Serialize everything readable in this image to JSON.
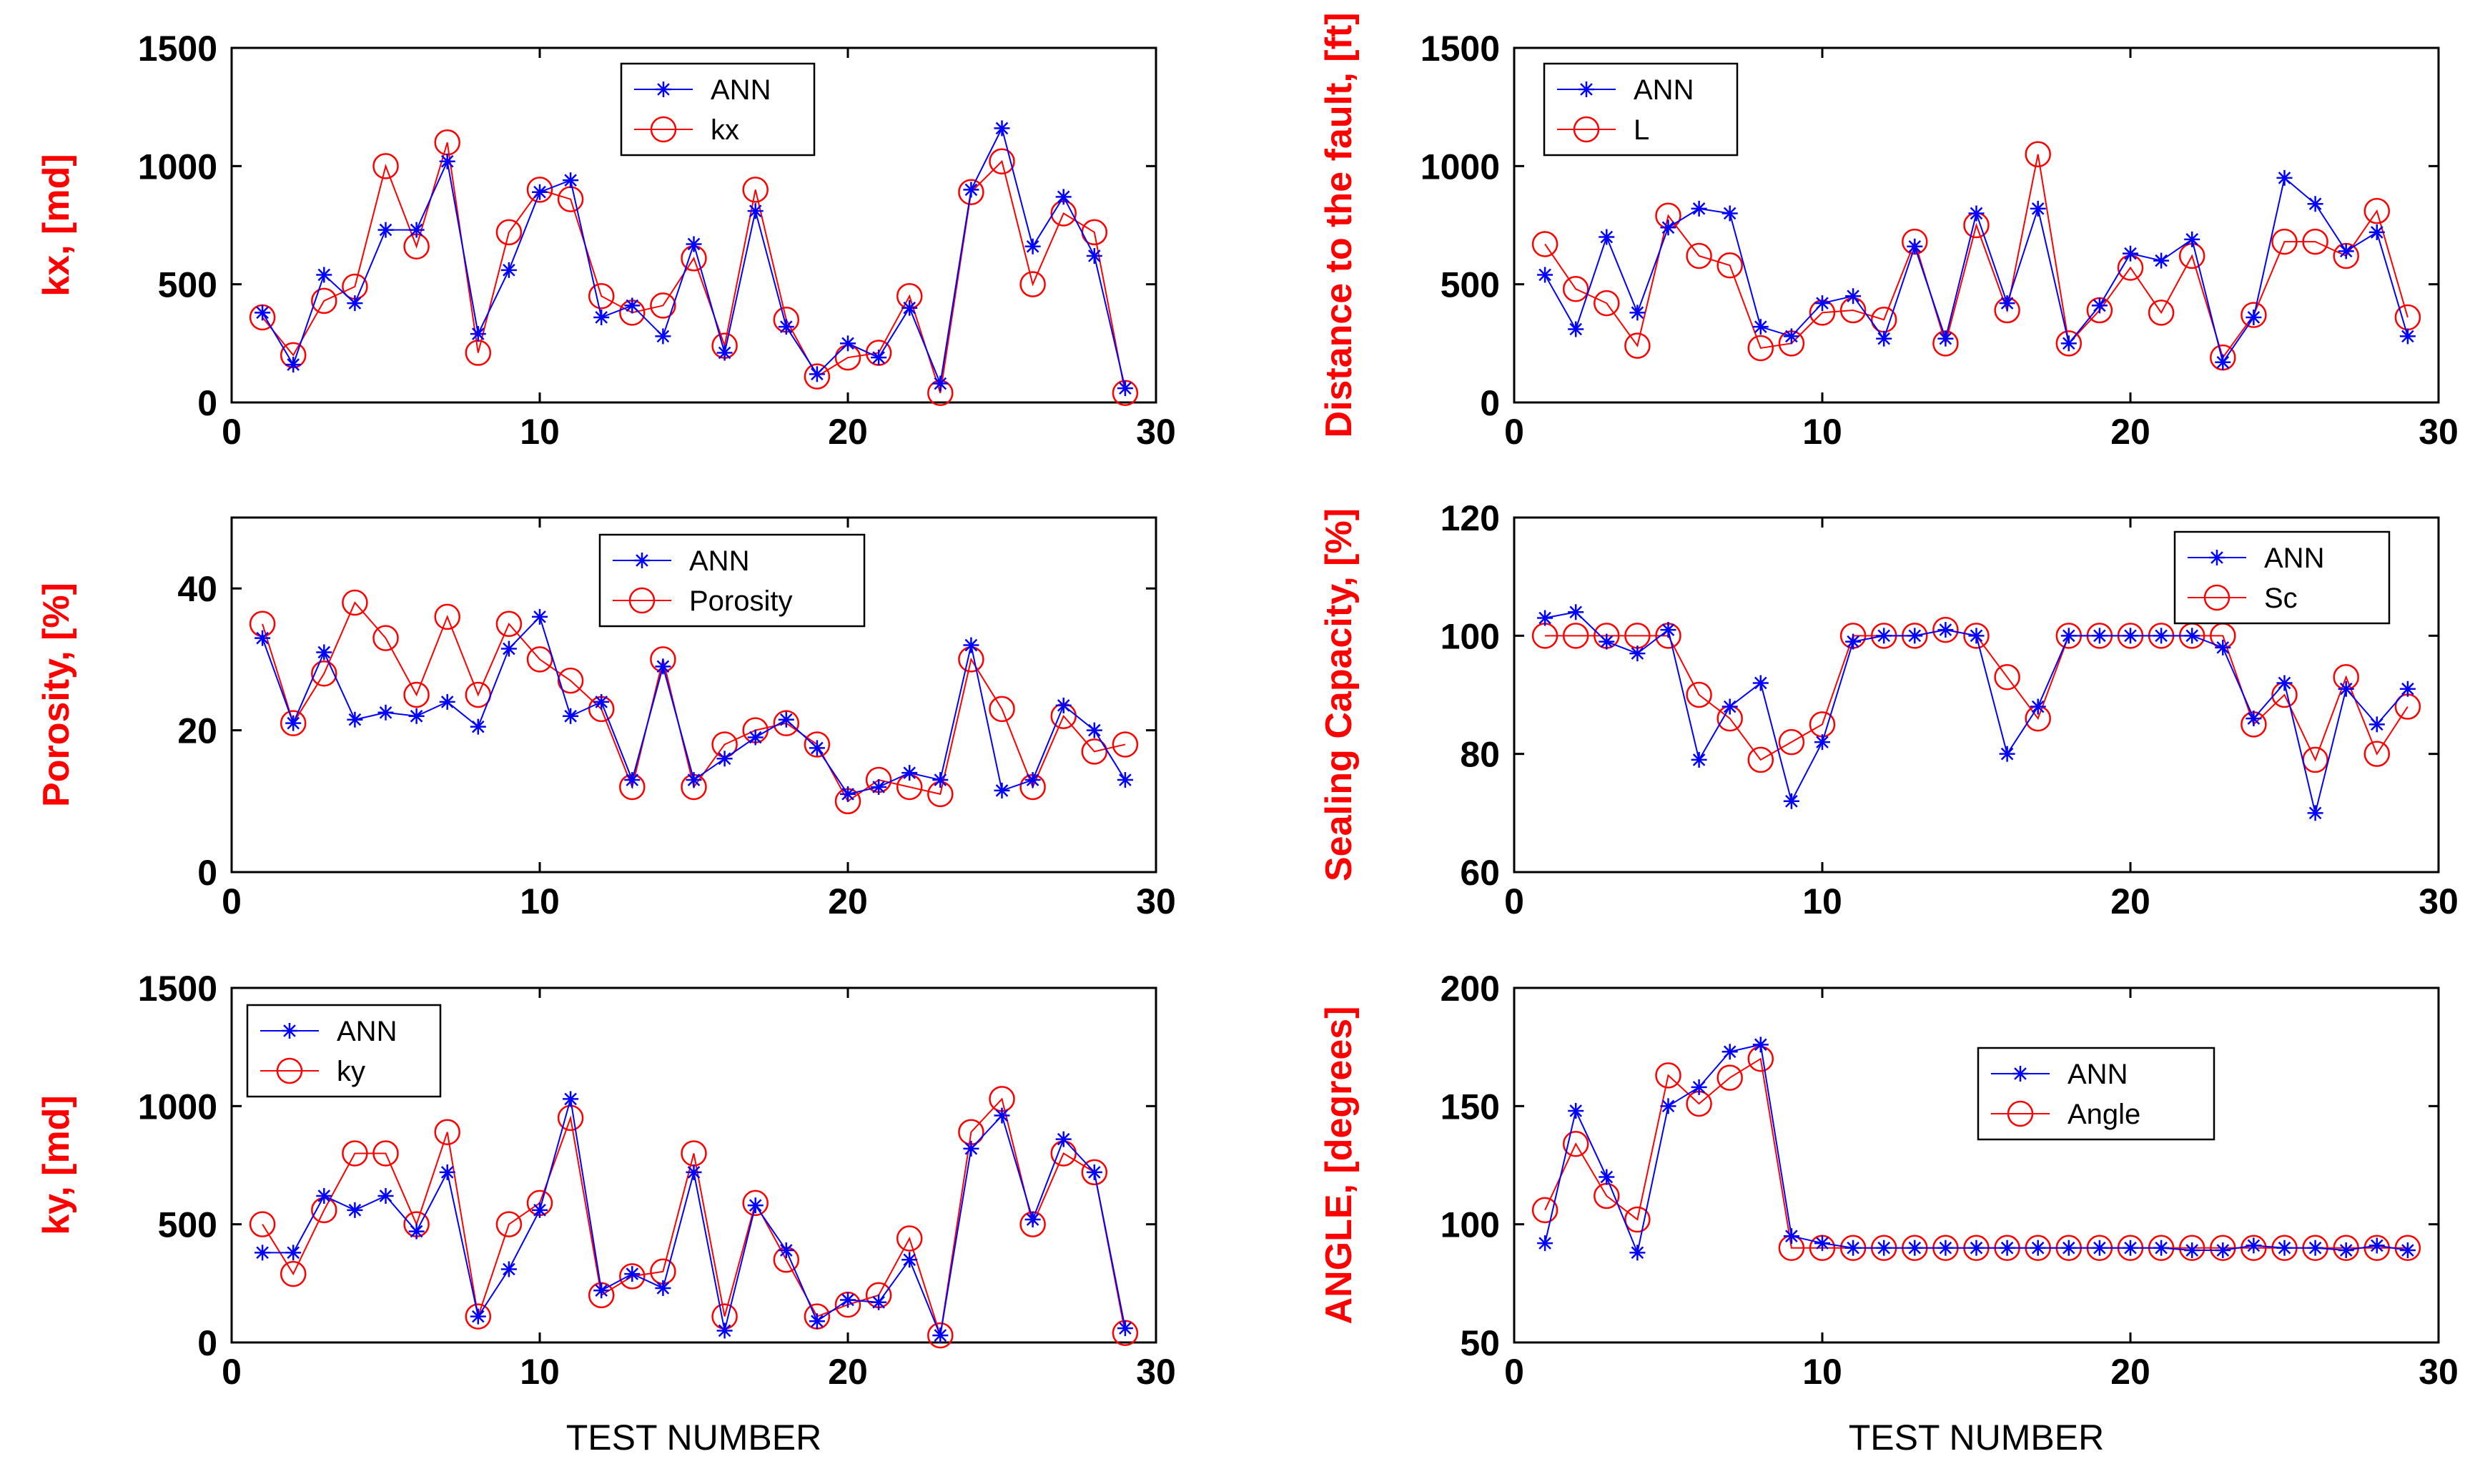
{
  "colors": {
    "ann": "#0000ff",
    "actual": "#ff0000",
    "axis": "#000000",
    "ylabel": "#ff0000"
  },
  "chart_data": [
    {
      "type": "line",
      "panel": "top-left",
      "ylabel": "kx, [md]",
      "xlabel": "",
      "title": "",
      "xlim": [
        0,
        30
      ],
      "ylim": [
        0,
        1500
      ],
      "xticks": [
        0,
        10,
        20,
        30
      ],
      "yticks": [
        0,
        500,
        1000,
        1500
      ],
      "legend_position": "top-center",
      "x": [
        1,
        2,
        3,
        4,
        5,
        6,
        7,
        8,
        9,
        10,
        11,
        12,
        13,
        14,
        15,
        16,
        17,
        18,
        19,
        20,
        21,
        22,
        23,
        24,
        25,
        26,
        27,
        28,
        29
      ],
      "series": [
        {
          "name": "ANN",
          "marker": "asterisk",
          "color": "#0000ff",
          "values": [
            380,
            160,
            540,
            420,
            730,
            730,
            1020,
            290,
            560,
            890,
            940,
            360,
            410,
            280,
            670,
            210,
            810,
            320,
            120,
            250,
            190,
            400,
            80,
            900,
            1160,
            660,
            870,
            620,
            60
          ]
        },
        {
          "name": "kx",
          "marker": "circle",
          "color": "#ff0000",
          "values": [
            360,
            200,
            430,
            490,
            1000,
            660,
            1100,
            210,
            720,
            900,
            860,
            450,
            380,
            410,
            610,
            240,
            900,
            350,
            110,
            190,
            210,
            450,
            40,
            890,
            1020,
            500,
            800,
            720,
            40
          ]
        }
      ]
    },
    {
      "type": "line",
      "panel": "top-right",
      "ylabel": "Distance to the fault, [ft]",
      "xlabel": "",
      "title": "",
      "xlim": [
        0,
        30
      ],
      "ylim": [
        0,
        1500
      ],
      "xticks": [
        0,
        10,
        20,
        30
      ],
      "yticks": [
        0,
        500,
        1000,
        1500
      ],
      "legend_position": "top-left",
      "x": [
        1,
        2,
        3,
        4,
        5,
        6,
        7,
        8,
        9,
        10,
        11,
        12,
        13,
        14,
        15,
        16,
        17,
        18,
        19,
        20,
        21,
        22,
        23,
        24,
        25,
        26,
        27,
        28,
        29
      ],
      "series": [
        {
          "name": "ANN",
          "marker": "asterisk",
          "color": "#0000ff",
          "values": [
            540,
            310,
            700,
            380,
            740,
            820,
            800,
            320,
            280,
            420,
            450,
            270,
            660,
            270,
            800,
            420,
            820,
            250,
            410,
            630,
            600,
            690,
            170,
            360,
            950,
            840,
            640,
            720,
            280
          ]
        },
        {
          "name": "L",
          "marker": "circle",
          "color": "#ff0000",
          "values": [
            670,
            480,
            420,
            240,
            790,
            620,
            580,
            230,
            250,
            380,
            390,
            350,
            680,
            250,
            750,
            390,
            1050,
            250,
            390,
            570,
            380,
            620,
            190,
            370,
            680,
            680,
            620,
            810,
            360
          ]
        }
      ]
    },
    {
      "type": "line",
      "panel": "middle-left",
      "ylabel": "Porosity, [%]",
      "xlabel": "",
      "title": "",
      "xlim": [
        0,
        30
      ],
      "ylim": [
        0,
        50
      ],
      "xticks": [
        0,
        10,
        20,
        30
      ],
      "yticks": [
        0,
        20,
        40
      ],
      "legend_position": "top-center",
      "x": [
        1,
        2,
        3,
        4,
        5,
        6,
        7,
        8,
        9,
        10,
        11,
        12,
        13,
        14,
        15,
        16,
        17,
        18,
        19,
        20,
        21,
        22,
        23,
        24,
        25,
        26,
        27,
        28,
        29
      ],
      "series": [
        {
          "name": "ANN",
          "marker": "asterisk",
          "color": "#0000ff",
          "values": [
            33,
            21,
            31,
            21.5,
            22.5,
            22,
            24,
            20.5,
            31.5,
            36,
            22,
            24,
            13,
            29,
            13,
            16,
            19,
            21.5,
            17.5,
            11,
            12,
            14,
            13,
            32,
            11.5,
            13,
            23.5,
            20,
            13
          ]
        },
        {
          "name": "Porosity",
          "marker": "circle",
          "color": "#ff0000",
          "values": [
            35,
            21,
            28,
            38,
            33,
            25,
            36,
            25,
            35,
            30,
            27,
            23,
            12,
            30,
            12,
            18,
            20,
            21,
            18,
            10,
            13,
            12,
            11,
            30,
            23,
            12,
            22,
            17,
            18
          ]
        }
      ]
    },
    {
      "type": "line",
      "panel": "middle-right",
      "ylabel": "Sealing Capacity, [%]",
      "xlabel": "",
      "title": "",
      "xlim": [
        0,
        30
      ],
      "ylim": [
        60,
        120
      ],
      "xticks": [
        0,
        10,
        20,
        30
      ],
      "yticks": [
        60,
        80,
        100,
        120
      ],
      "legend_position": "top-right",
      "x": [
        1,
        2,
        3,
        4,
        5,
        6,
        7,
        8,
        9,
        10,
        11,
        12,
        13,
        14,
        15,
        16,
        17,
        18,
        19,
        20,
        21,
        22,
        23,
        24,
        25,
        26,
        27,
        28,
        29
      ],
      "series": [
        {
          "name": "ANN",
          "marker": "asterisk",
          "color": "#0000ff",
          "values": [
            103,
            104,
            99,
            97,
            101,
            79,
            88,
            92,
            72,
            82,
            99,
            100,
            100,
            101,
            100,
            80,
            88,
            100,
            100,
            100,
            100,
            100,
            98,
            86,
            92,
            70,
            91,
            85,
            91
          ]
        },
        {
          "name": "Sc",
          "marker": "circle",
          "color": "#ff0000",
          "values": [
            100,
            100,
            100,
            100,
            100,
            90,
            86,
            79,
            82,
            85,
            100,
            100,
            100,
            101,
            100,
            93,
            86,
            100,
            100,
            100,
            100,
            100,
            100,
            85,
            90,
            79,
            93,
            80,
            88
          ]
        }
      ]
    },
    {
      "type": "line",
      "panel": "bottom-left",
      "ylabel": "ky, [md]",
      "xlabel": "TEST NUMBER",
      "title": "",
      "xlim": [
        0,
        30
      ],
      "ylim": [
        0,
        1500
      ],
      "xticks": [
        0,
        10,
        20,
        30
      ],
      "yticks": [
        0,
        500,
        1000,
        1500
      ],
      "legend_position": "top-left",
      "x": [
        1,
        2,
        3,
        4,
        5,
        6,
        7,
        8,
        9,
        10,
        11,
        12,
        13,
        14,
        15,
        16,
        17,
        18,
        19,
        20,
        21,
        22,
        23,
        24,
        25,
        26,
        27,
        28,
        29
      ],
      "series": [
        {
          "name": "ANN",
          "marker": "asterisk",
          "color": "#0000ff",
          "values": [
            380,
            380,
            620,
            560,
            620,
            470,
            720,
            110,
            310,
            560,
            1030,
            220,
            290,
            230,
            720,
            50,
            580,
            390,
            90,
            180,
            170,
            350,
            30,
            820,
            960,
            520,
            860,
            720,
            60
          ]
        },
        {
          "name": "ky",
          "marker": "circle",
          "color": "#ff0000",
          "values": [
            500,
            290,
            560,
            800,
            800,
            500,
            890,
            110,
            500,
            590,
            950,
            200,
            280,
            300,
            800,
            110,
            590,
            350,
            110,
            160,
            200,
            440,
            30,
            890,
            1030,
            500,
            800,
            720,
            40
          ]
        }
      ]
    },
    {
      "type": "line",
      "panel": "bottom-right",
      "ylabel": "ANGLE, [degrees]",
      "xlabel": "TEST NUMBER",
      "title": "",
      "xlim": [
        0,
        30
      ],
      "ylim": [
        50,
        200
      ],
      "xticks": [
        0,
        10,
        20,
        30
      ],
      "yticks": [
        50,
        100,
        150,
        200
      ],
      "legend_position": "top-right",
      "x": [
        1,
        2,
        3,
        4,
        5,
        6,
        7,
        8,
        9,
        10,
        11,
        12,
        13,
        14,
        15,
        16,
        17,
        18,
        19,
        20,
        21,
        22,
        23,
        24,
        25,
        26,
        27,
        28,
        29
      ],
      "series": [
        {
          "name": "ANN",
          "marker": "asterisk",
          "color": "#0000ff",
          "values": [
            92,
            148,
            120,
            88,
            150,
            158,
            173,
            176,
            95,
            92,
            90,
            90,
            90,
            90,
            90,
            90,
            90,
            90,
            90,
            90,
            90,
            89,
            89,
            91,
            90,
            90,
            89,
            91,
            89
          ]
        },
        {
          "name": "Angle",
          "marker": "circle",
          "color": "#ff0000",
          "values": [
            106,
            134,
            112,
            102,
            163,
            151,
            162,
            170,
            90,
            90,
            90,
            90,
            90,
            90,
            90,
            90,
            90,
            90,
            90,
            90,
            90,
            90,
            90,
            90,
            90,
            90,
            90,
            90,
            90
          ]
        }
      ]
    }
  ]
}
